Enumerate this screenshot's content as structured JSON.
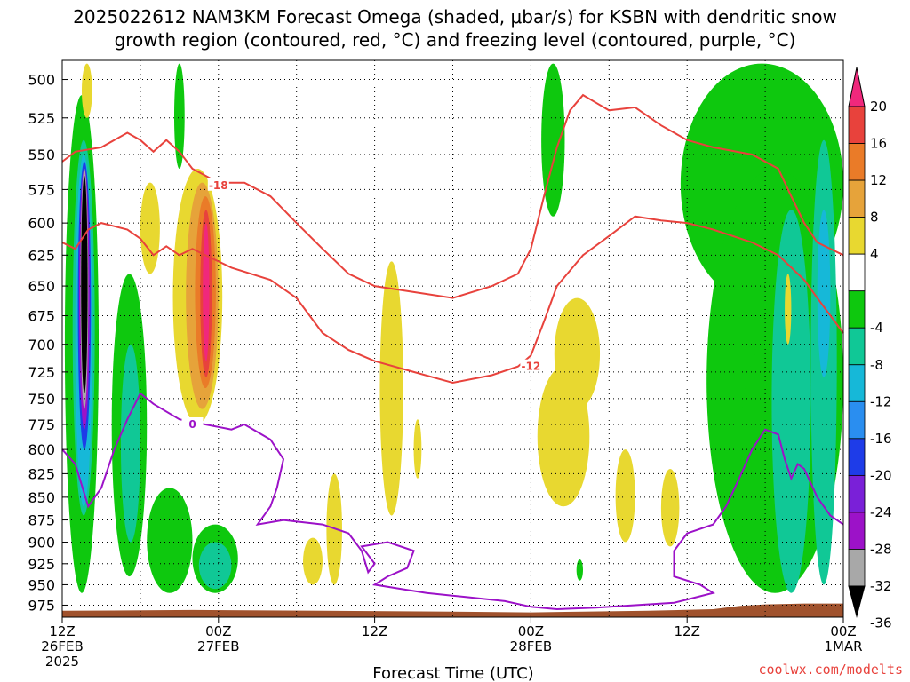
{
  "chart_data": {
    "type": "heatmap",
    "title_line1": "2025022612 NAM3KM Forecast Omega (shaded, μbar/s) for KSBN with dendritic snow",
    "title_line2": "growth region (contoured, red, °C) and freezing level (contoured, purple, °C)",
    "xlabel": "Forecast Time (UTC)",
    "x_ticks": [
      {
        "hour": 0,
        "line1": "12Z",
        "line2": "26FEB",
        "line3": "2025"
      },
      {
        "hour": 12,
        "line1": "00Z",
        "line2": "27FEB",
        "line3": ""
      },
      {
        "hour": 24,
        "line1": "12Z",
        "line2": "",
        "line3": ""
      },
      {
        "hour": 36,
        "line1": "00Z",
        "line2": "28FEB",
        "line3": ""
      },
      {
        "hour": 48,
        "line1": "12Z",
        "line2": "",
        "line3": ""
      },
      {
        "hour": 60,
        "line1": "00Z",
        "line2": "1MAR",
        "line3": ""
      }
    ],
    "x_range": [
      0,
      60
    ],
    "y_ticks": [
      500,
      525,
      550,
      575,
      600,
      625,
      650,
      675,
      700,
      725,
      750,
      775,
      800,
      825,
      850,
      875,
      900,
      925,
      950,
      975
    ],
    "y_range": [
      488,
      990
    ],
    "colorbar": {
      "ticks": [
        20,
        16,
        12,
        8,
        4,
        -4,
        -8,
        -12,
        -16,
        -20,
        -24,
        -28,
        -32,
        -36
      ],
      "bins": [
        {
          "from": 20,
          "to": 24,
          "color": "#f0287c"
        },
        {
          "from": 16,
          "to": 20,
          "color": "#e8423c"
        },
        {
          "from": 12,
          "to": 16,
          "color": "#ea7b28"
        },
        {
          "from": 8,
          "to": 12,
          "color": "#e6a33a"
        },
        {
          "from": 4,
          "to": 8,
          "color": "#e8d830"
        },
        {
          "from": -4,
          "to": 4,
          "color": "#ffffff"
        },
        {
          "from": -8,
          "to": -4,
          "color": "#0ec80e"
        },
        {
          "from": -12,
          "to": -8,
          "color": "#10c896"
        },
        {
          "from": -16,
          "to": -12,
          "color": "#16b8d8"
        },
        {
          "from": -20,
          "to": -16,
          "color": "#2a8ef0"
        },
        {
          "from": -24,
          "to": -20,
          "color": "#1e3ce8"
        },
        {
          "from": -28,
          "to": -24,
          "color": "#7a20d8"
        },
        {
          "from": -32,
          "to": -28,
          "color": "#9c12c8"
        },
        {
          "from": -36,
          "to": -32,
          "color": "#a8a8a8"
        },
        {
          "from": -40,
          "to": -36,
          "color": "#000000"
        }
      ]
    },
    "omega_cells": [
      {
        "x0": 0.2,
        "x1": 2.8,
        "p0": 510,
        "p1": 960,
        "value": -6
      },
      {
        "x0": 0.8,
        "x1": 2.5,
        "p0": 540,
        "p1": 870,
        "value": -10
      },
      {
        "x0": 1.0,
        "x1": 2.3,
        "p0": 550,
        "p1": 860,
        "value": -14
      },
      {
        "x0": 1.2,
        "x1": 2.2,
        "p0": 555,
        "p1": 800,
        "value": -22
      },
      {
        "x0": 1.3,
        "x1": 2.1,
        "p0": 560,
        "p1": 780,
        "value": -30
      },
      {
        "x0": 1.4,
        "x1": 2.0,
        "p0": 560,
        "p1": 760,
        "value": -34
      },
      {
        "x0": 1.45,
        "x1": 1.95,
        "p0": 565,
        "p1": 745,
        "value": -38
      },
      {
        "x0": 3.8,
        "x1": 6.5,
        "p0": 640,
        "p1": 940,
        "value": -6
      },
      {
        "x0": 4.5,
        "x1": 6.0,
        "p0": 700,
        "p1": 900,
        "value": -10
      },
      {
        "x0": 6.5,
        "x1": 10.0,
        "p0": 840,
        "p1": 960,
        "value": -6
      },
      {
        "x0": 10.0,
        "x1": 13.5,
        "p0": 880,
        "p1": 960,
        "value": -6
      },
      {
        "x0": 10.5,
        "x1": 13.0,
        "p0": 900,
        "p1": 955,
        "value": -10
      },
      {
        "x0": 8.5,
        "x1": 12.3,
        "p0": 560,
        "p1": 775,
        "value": 6
      },
      {
        "x0": 9.5,
        "x1": 12.0,
        "p0": 570,
        "p1": 760,
        "value": 10
      },
      {
        "x0": 10.2,
        "x1": 11.8,
        "p0": 580,
        "p1": 740,
        "value": 14
      },
      {
        "x0": 10.6,
        "x1": 11.5,
        "p0": 590,
        "p1": 730,
        "value": 18
      },
      {
        "x0": 10.8,
        "x1": 11.3,
        "p0": 600,
        "p1": 715,
        "value": 22
      },
      {
        "x0": 6.0,
        "x1": 7.5,
        "p0": 570,
        "p1": 640,
        "value": 6
      },
      {
        "x0": 8.6,
        "x1": 9.4,
        "p0": 490,
        "p1": 560,
        "value": -6
      },
      {
        "x0": 1.5,
        "x1": 2.3,
        "p0": 490,
        "p1": 525,
        "value": 6
      },
      {
        "x0": 18.5,
        "x1": 20.0,
        "p0": 895,
        "p1": 950,
        "value": 6
      },
      {
        "x0": 20.3,
        "x1": 21.5,
        "p0": 825,
        "p1": 950,
        "value": 6
      },
      {
        "x0": 24.4,
        "x1": 26.2,
        "p0": 630,
        "p1": 870,
        "value": 6
      },
      {
        "x0": 27.0,
        "x1": 27.6,
        "p0": 770,
        "p1": 830,
        "value": 6
      },
      {
        "x0": 36.5,
        "x1": 40.5,
        "p0": 720,
        "p1": 860,
        "value": 6
      },
      {
        "x0": 37.8,
        "x1": 41.3,
        "p0": 660,
        "p1": 760,
        "value": 6
      },
      {
        "x0": 42.5,
        "x1": 44.0,
        "p0": 800,
        "p1": 900,
        "value": 6
      },
      {
        "x0": 46.0,
        "x1": 47.4,
        "p0": 820,
        "p1": 905,
        "value": 6
      },
      {
        "x0": 36.8,
        "x1": 38.6,
        "p0": 490,
        "p1": 595,
        "value": -6
      },
      {
        "x0": 47.5,
        "x1": 60.0,
        "p0": 490,
        "p1": 665,
        "value": -6
      },
      {
        "x0": 49.5,
        "x1": 60.0,
        "p0": 560,
        "p1": 960,
        "value": -6
      },
      {
        "x0": 52.0,
        "x1": 56.0,
        "p0": 700,
        "p1": 955,
        "value": -6
      },
      {
        "x0": 54.5,
        "x1": 57.5,
        "p0": 590,
        "p1": 960,
        "value": -10
      },
      {
        "x0": 57.5,
        "x1": 59.5,
        "p0": 540,
        "p1": 950,
        "value": -10
      },
      {
        "x0": 58.0,
        "x1": 59.0,
        "p0": 590,
        "p1": 730,
        "value": -14
      },
      {
        "x0": 39.5,
        "x1": 40.0,
        "p0": 920,
        "p1": 945,
        "value": -6
      },
      {
        "x0": 55.5,
        "x1": 56.0,
        "p0": 640,
        "p1": 700,
        "value": 6
      }
    ],
    "contours": [
      {
        "label": "-18",
        "color": "#e8423c",
        "points": [
          [
            0,
            555
          ],
          [
            1,
            548
          ],
          [
            3,
            545
          ],
          [
            5,
            535
          ],
          [
            6,
            540
          ],
          [
            7,
            548
          ],
          [
            8,
            540
          ],
          [
            9,
            548
          ],
          [
            10,
            560
          ],
          [
            12,
            570
          ],
          [
            14,
            570
          ],
          [
            16,
            580
          ],
          [
            18,
            600
          ],
          [
            20,
            620
          ],
          [
            22,
            640
          ],
          [
            24,
            650
          ],
          [
            27,
            655
          ],
          [
            30,
            660
          ],
          [
            33,
            650
          ],
          [
            35,
            640
          ],
          [
            36,
            620
          ],
          [
            37,
            580
          ],
          [
            38,
            545
          ],
          [
            39,
            520
          ],
          [
            40,
            510
          ],
          [
            41,
            515
          ],
          [
            42,
            520
          ],
          [
            44,
            518
          ],
          [
            46,
            530
          ],
          [
            48,
            540
          ],
          [
            50,
            545
          ],
          [
            53,
            550
          ],
          [
            55,
            560
          ],
          [
            56,
            580
          ],
          [
            57,
            600
          ],
          [
            58,
            615
          ],
          [
            60,
            625
          ]
        ],
        "label_at": [
          12,
          572
        ]
      },
      {
        "label": "-12",
        "color": "#e8423c",
        "points": [
          [
            0,
            615
          ],
          [
            1,
            620
          ],
          [
            2,
            605
          ],
          [
            3,
            600
          ],
          [
            5,
            605
          ],
          [
            6,
            612
          ],
          [
            7,
            625
          ],
          [
            8,
            618
          ],
          [
            9,
            625
          ],
          [
            10,
            620
          ],
          [
            11,
            625
          ],
          [
            12,
            630
          ],
          [
            13,
            635
          ],
          [
            16,
            645
          ],
          [
            18,
            660
          ],
          [
            20,
            690
          ],
          [
            22,
            705
          ],
          [
            24,
            715
          ],
          [
            27,
            725
          ],
          [
            30,
            735
          ],
          [
            33,
            728
          ],
          [
            35,
            720
          ],
          [
            36,
            710
          ],
          [
            37,
            680
          ],
          [
            38,
            650
          ],
          [
            40,
            625
          ],
          [
            42,
            610
          ],
          [
            44,
            595
          ],
          [
            46,
            598
          ],
          [
            48,
            600
          ],
          [
            50,
            605
          ],
          [
            53,
            615
          ],
          [
            55,
            625
          ],
          [
            57,
            645
          ],
          [
            58,
            660
          ],
          [
            60,
            690
          ]
        ],
        "label_at": [
          36,
          720
        ]
      },
      {
        "label": "0",
        "color": "#9c12c8",
        "points": [
          [
            0,
            800
          ],
          [
            1,
            815
          ],
          [
            2,
            860
          ],
          [
            3,
            840
          ],
          [
            4,
            800
          ],
          [
            5,
            770
          ],
          [
            6,
            745
          ],
          [
            7,
            755
          ],
          [
            9,
            770
          ],
          [
            11,
            775
          ],
          [
            13,
            780
          ],
          [
            14,
            775
          ],
          [
            16,
            790
          ],
          [
            17,
            810
          ],
          [
            16.5,
            840
          ],
          [
            16,
            860
          ],
          [
            15,
            880
          ],
          [
            17,
            875
          ],
          [
            20,
            880
          ],
          [
            22,
            890
          ],
          [
            23,
            910
          ],
          [
            23.5,
            935
          ],
          [
            24,
            925
          ],
          [
            23,
            905
          ],
          [
            25,
            900
          ],
          [
            27,
            910
          ],
          [
            26.5,
            930
          ],
          [
            25,
            940
          ],
          [
            24,
            950
          ],
          [
            26,
            955
          ],
          [
            28,
            960
          ],
          [
            31,
            965
          ],
          [
            34,
            970
          ],
          [
            36,
            977
          ],
          [
            38,
            980
          ],
          [
            41,
            978
          ],
          [
            44,
            975
          ],
          [
            47,
            972
          ],
          [
            48,
            968
          ],
          [
            50,
            960
          ],
          [
            49,
            950
          ],
          [
            47,
            940
          ],
          [
            47,
            910
          ],
          [
            48,
            890
          ],
          [
            50,
            880
          ],
          [
            51,
            860
          ],
          [
            52,
            830
          ],
          [
            53,
            800
          ],
          [
            54,
            780
          ],
          [
            55,
            785
          ],
          [
            55.5,
            810
          ],
          [
            56,
            830
          ],
          [
            56.5,
            815
          ],
          [
            57,
            820
          ],
          [
            58,
            850
          ],
          [
            59,
            870
          ],
          [
            60,
            880
          ]
        ],
        "label_at": [
          10,
          775
        ]
      }
    ]
  },
  "credit": "coolwx.com/modelts"
}
